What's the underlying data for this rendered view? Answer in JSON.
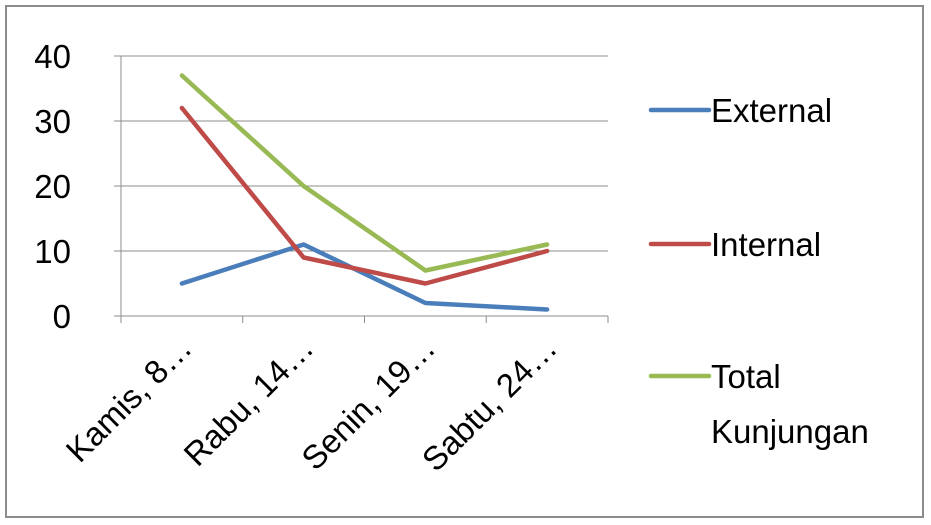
{
  "chart_data": {
    "type": "line",
    "title": "",
    "xlabel": "",
    "ylabel": "",
    "categories": [
      "Kamis, 8…",
      "Rabu, 14…",
      "Senin, 19…",
      "Sabtu, 24…"
    ],
    "ylim": [
      0,
      40
    ],
    "yticks": [
      "0",
      "10",
      "20",
      "30",
      "40"
    ],
    "grid": true,
    "legend_position": "right",
    "series": [
      {
        "name": "External",
        "color": "#4a7ebb",
        "values": [
          5,
          11,
          2,
          1
        ]
      },
      {
        "name": "Internal",
        "color": "#be4b48",
        "values": [
          32,
          9,
          5,
          10
        ]
      },
      {
        "name": "Total Kunjungan",
        "color": "#98b954",
        "values": [
          37,
          20,
          7,
          11
        ]
      }
    ]
  }
}
